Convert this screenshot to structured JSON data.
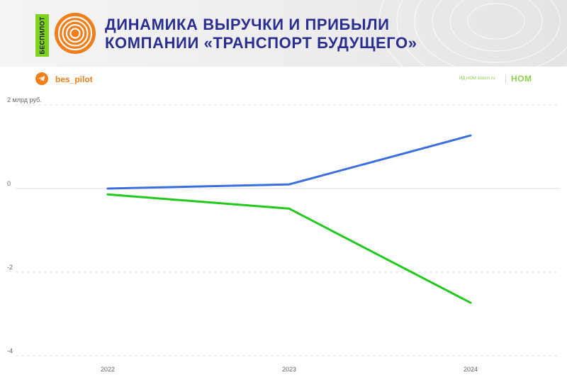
{
  "header": {
    "brand_tag": "БЕСПИЛОТ",
    "title_line1": "ДИНАМИКА ВЫРУЧКИ И ПРИБЫЛИ",
    "title_line2": "КОМПАНИИ «ТРАНСПОРТ БУДУЩЕГО»",
    "title_color": "#2a2f8f",
    "accent_color": "#f07e1a",
    "tag_color": "#7ed321"
  },
  "subbar": {
    "icon": "telegram-icon",
    "handle": "bes_pilot",
    "source_text": "ИД НОМ ildoom.ru",
    "source_logo": "НОМ"
  },
  "chart_data": {
    "type": "line",
    "x": [
      "2022",
      "2023",
      "2024"
    ],
    "ylabel": "млрд руб.",
    "ylim": [
      -4,
      2
    ],
    "yticks": [
      2,
      0,
      -2,
      -4
    ],
    "ytick_labels": [
      "2 млрд руб.",
      "0",
      "-2",
      "-4"
    ],
    "grid": true,
    "series": [
      {
        "values": [
          0.0,
          0.1,
          1.27
        ],
        "color": "#3b6fe0"
      },
      {
        "values": [
          -0.14,
          -0.48,
          -2.73
        ],
        "color": "#22c81e"
      }
    ]
  }
}
